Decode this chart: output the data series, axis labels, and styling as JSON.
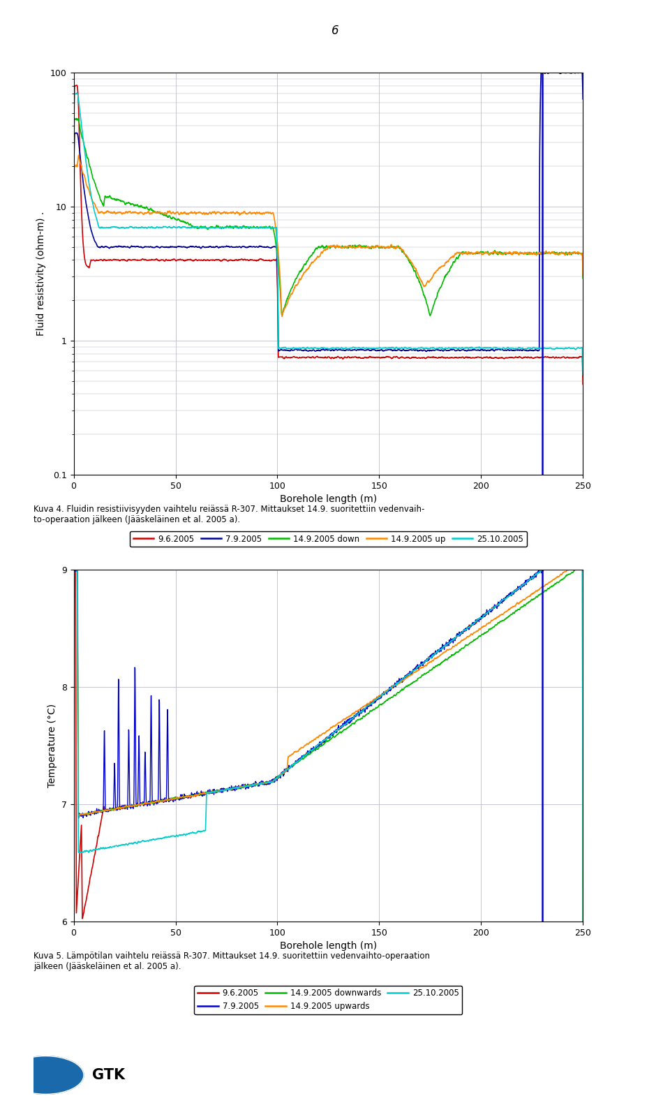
{
  "page_number": "6",
  "chart1": {
    "ylabel": "Fluid resistivity (ohm-m) .",
    "xlabel": "Borehole length (m)",
    "xlim": [
      0,
      250
    ],
    "ylim_log": [
      0.1,
      100
    ],
    "yticks": [
      0.1,
      1,
      10,
      100
    ],
    "xticks": [
      0,
      50,
      100,
      150,
      200,
      250
    ],
    "legend_labels": [
      "9.6.2005",
      "7.9.2005",
      "14.9.2005 down",
      "14.9.2005 up",
      "25.10.2005"
    ],
    "legend_colors": [
      "#cc0000",
      "#000099",
      "#00bb00",
      "#ff8800",
      "#00cccc"
    ],
    "vline_x": 230,
    "vline_color": "#0000cc",
    "caption": "Kuva 4. Fluidin resistiivisyyden vaihtelu reiässä R-307. Mittaukset 14.9. suoritettiin vedenvaih-\nto-operaation jälkeen (Jääskeläinen et al. 2005 a)."
  },
  "chart2": {
    "ylabel": "Temperature (°C)",
    "xlabel": "Borehole length (m)",
    "xlim": [
      0,
      250
    ],
    "ylim": [
      6,
      9
    ],
    "yticks": [
      6,
      7,
      8,
      9
    ],
    "xticks": [
      0,
      50,
      100,
      150,
      200,
      250
    ],
    "legend_labels": [
      "9.6.2005",
      "7.9.2005",
      "14.9.2005 downwards",
      "14.9.2005 upwards",
      "25.10.2005"
    ],
    "legend_colors": [
      "#cc0000",
      "#0000cc",
      "#00bb00",
      "#ff8800",
      "#00cccc"
    ],
    "vline_x": 230,
    "vline_color": "#0000cc",
    "caption": "Kuva 5. Lämpötilan vaihtelu reiässä R-307. Mittaukset 14.9. suoritettiin vedenvaihto-operaation\njälkeen (Jääskeläinen et al. 2005 a)."
  },
  "background_color": "#ffffff",
  "grid_color": "#bbbbcc",
  "plot_bg": "#ffffff"
}
